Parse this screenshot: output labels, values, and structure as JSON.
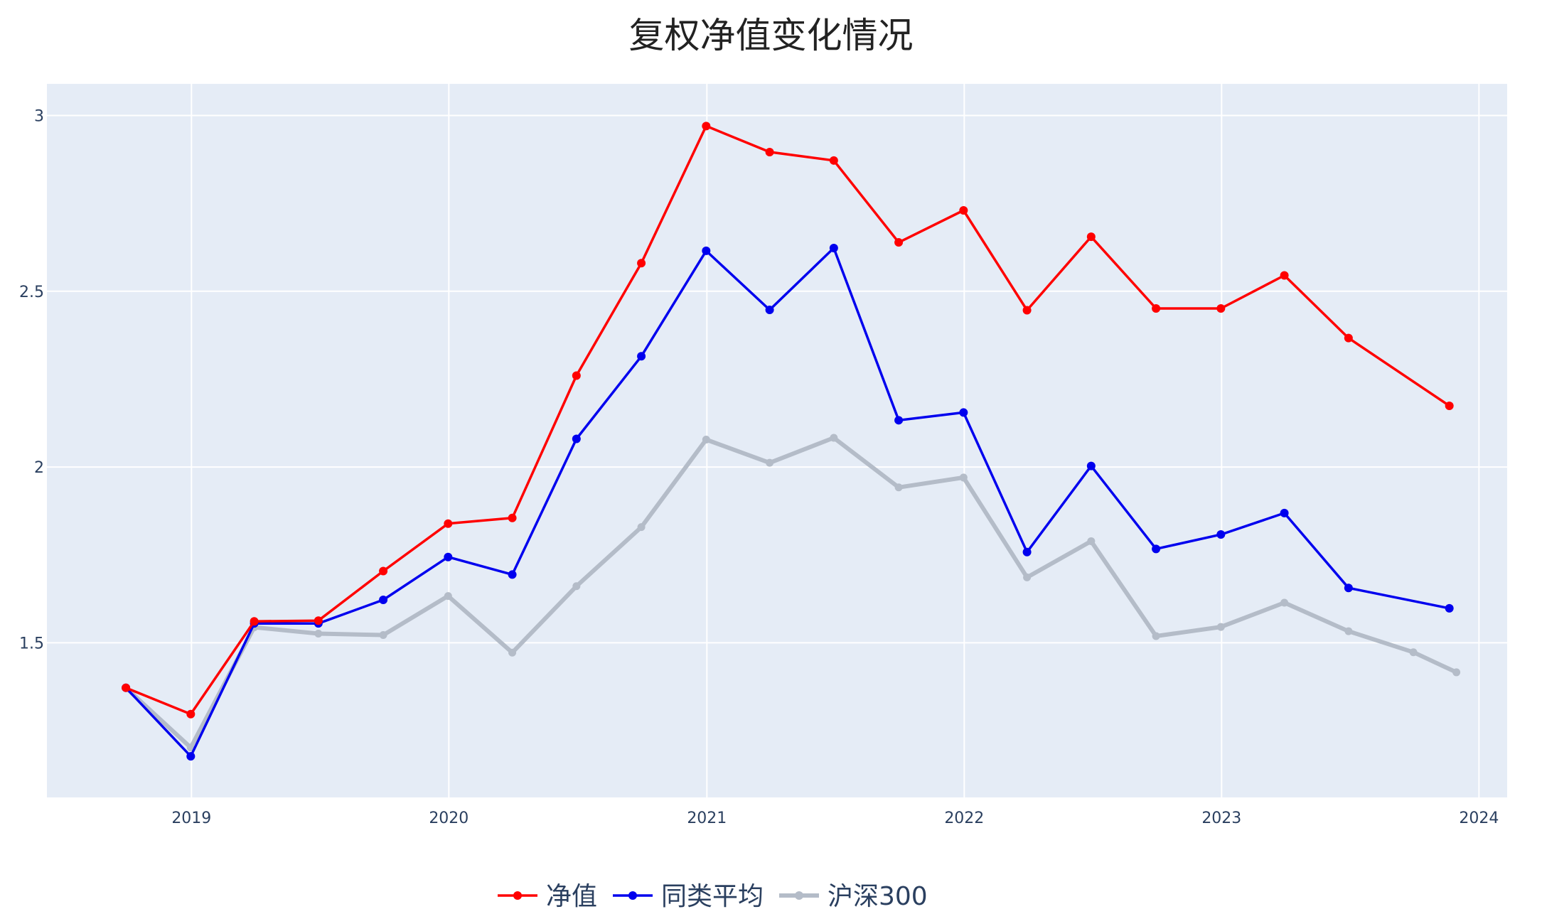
{
  "chart_data": {
    "type": "line",
    "title": "复权净值变化情况",
    "xlabel": "",
    "ylabel": "",
    "x_range": [
      "2018-06-10",
      "2024-02-10"
    ],
    "ylim": [
      1.06,
      3.09
    ],
    "x_ticks": [
      "2019",
      "2020",
      "2021",
      "2022",
      "2023",
      "2024"
    ],
    "y_ticks": [
      "1.5",
      "2",
      "2.5",
      "3"
    ],
    "grid": true,
    "legend_position": "bottom-center",
    "series": [
      {
        "name": "净值",
        "color": "#ff0000",
        "points": [
          [
            "2018-09-30",
            1.372
          ],
          [
            "2018-12-31",
            1.297
          ],
          [
            "2019-03-31",
            1.561
          ],
          [
            "2019-06-30",
            1.563
          ],
          [
            "2019-09-30",
            1.704
          ],
          [
            "2019-12-31",
            1.839
          ],
          [
            "2020-03-31",
            1.855
          ],
          [
            "2020-06-30",
            2.26
          ],
          [
            "2020-09-30",
            2.58
          ],
          [
            "2020-12-31",
            2.97
          ],
          [
            "2021-03-31",
            2.896
          ],
          [
            "2021-06-30",
            2.872
          ],
          [
            "2021-09-30",
            2.639
          ],
          [
            "2021-12-31",
            2.73
          ],
          [
            "2022-03-31",
            2.446
          ],
          [
            "2022-06-30",
            2.655
          ],
          [
            "2022-09-30",
            2.451
          ],
          [
            "2022-12-31",
            2.451
          ],
          [
            "2023-03-31",
            2.545
          ],
          [
            "2023-06-30",
            2.367
          ],
          [
            "2023-11-20",
            2.174
          ]
        ]
      },
      {
        "name": "同类平均",
        "color": "#0000ee",
        "points": [
          [
            "2018-09-30",
            1.372
          ],
          [
            "2018-12-31",
            1.177
          ],
          [
            "2019-03-31",
            1.555
          ],
          [
            "2019-06-30",
            1.555
          ],
          [
            "2019-09-30",
            1.622
          ],
          [
            "2019-12-31",
            1.744
          ],
          [
            "2020-03-31",
            1.694
          ],
          [
            "2020-06-30",
            2.08
          ],
          [
            "2020-09-30",
            2.315
          ],
          [
            "2020-12-31",
            2.615
          ],
          [
            "2021-03-31",
            2.447
          ],
          [
            "2021-06-30",
            2.623
          ],
          [
            "2021-09-30",
            2.133
          ],
          [
            "2021-12-31",
            2.155
          ],
          [
            "2022-03-31",
            1.758
          ],
          [
            "2022-06-30",
            2.003
          ],
          [
            "2022-09-30",
            1.767
          ],
          [
            "2022-12-31",
            1.808
          ],
          [
            "2023-03-31",
            1.869
          ],
          [
            "2023-06-30",
            1.656
          ],
          [
            "2023-11-20",
            1.598
          ]
        ]
      },
      {
        "name": "沪深300",
        "color": "#b4bcc8",
        "points": [
          [
            "2018-09-30",
            1.372
          ],
          [
            "2018-12-31",
            1.202
          ],
          [
            "2019-03-31",
            1.544
          ],
          [
            "2019-06-30",
            1.526
          ],
          [
            "2019-09-30",
            1.522
          ],
          [
            "2019-12-31",
            1.633
          ],
          [
            "2020-03-31",
            1.472
          ],
          [
            "2020-06-30",
            1.661
          ],
          [
            "2020-09-30",
            1.829
          ],
          [
            "2020-12-31",
            2.078
          ],
          [
            "2021-03-31",
            2.012
          ],
          [
            "2021-06-30",
            2.083
          ],
          [
            "2021-09-30",
            1.942
          ],
          [
            "2021-12-31",
            1.97
          ],
          [
            "2022-03-31",
            1.686
          ],
          [
            "2022-06-30",
            1.789
          ],
          [
            "2022-09-30",
            1.519
          ],
          [
            "2022-12-31",
            1.545
          ],
          [
            "2023-03-31",
            1.614
          ],
          [
            "2023-06-30",
            1.533
          ],
          [
            "2023-09-30",
            1.473
          ],
          [
            "2023-11-30",
            1.416
          ]
        ]
      }
    ]
  }
}
